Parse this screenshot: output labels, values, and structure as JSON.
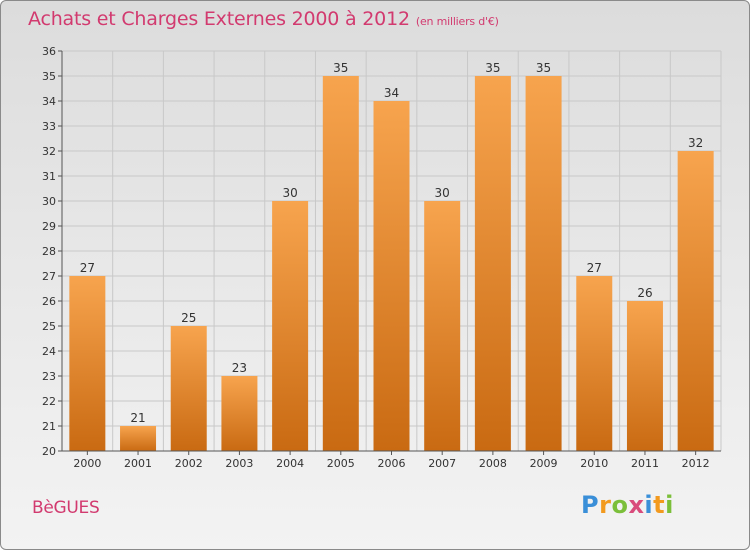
{
  "title": "Achats et Charges Externes 2000 à 2012",
  "unit": "(en milliers d'€)",
  "commune": "BèGUES",
  "logo": {
    "letters": [
      "P",
      "r",
      "o",
      "x",
      "i",
      "t",
      "i"
    ],
    "colors": [
      "#3a8fd8",
      "#f29a1f",
      "#7bbf3a",
      "#d94b7c",
      "#3a8fd8",
      "#f29a1f",
      "#7bbf3a"
    ]
  },
  "colors": {
    "title": "#d23a6f",
    "bar_top": "#f7a44e",
    "bar_bottom": "#c96a12",
    "grid": "#c8c8c8"
  },
  "chart_data": {
    "type": "bar",
    "categories": [
      "2000",
      "2001",
      "2002",
      "2003",
      "2004",
      "2005",
      "2006",
      "2007",
      "2008",
      "2009",
      "2010",
      "2011",
      "2012"
    ],
    "values": [
      27,
      21,
      25,
      23,
      30,
      35,
      34,
      30,
      35,
      35,
      27,
      26,
      32
    ],
    "data_labels": [
      "27",
      "21",
      "25",
      "23",
      "30",
      "35",
      "34",
      "30",
      "35",
      "35",
      "27",
      "26",
      "32"
    ],
    "yticks": [
      "20",
      "21",
      "22",
      "23",
      "24",
      "25",
      "26",
      "27",
      "28",
      "29",
      "30",
      "31",
      "32",
      "33",
      "34",
      "35",
      "36"
    ],
    "ylim": [
      20,
      36
    ],
    "grid": true,
    "xlabel": "",
    "ylabel": ""
  }
}
